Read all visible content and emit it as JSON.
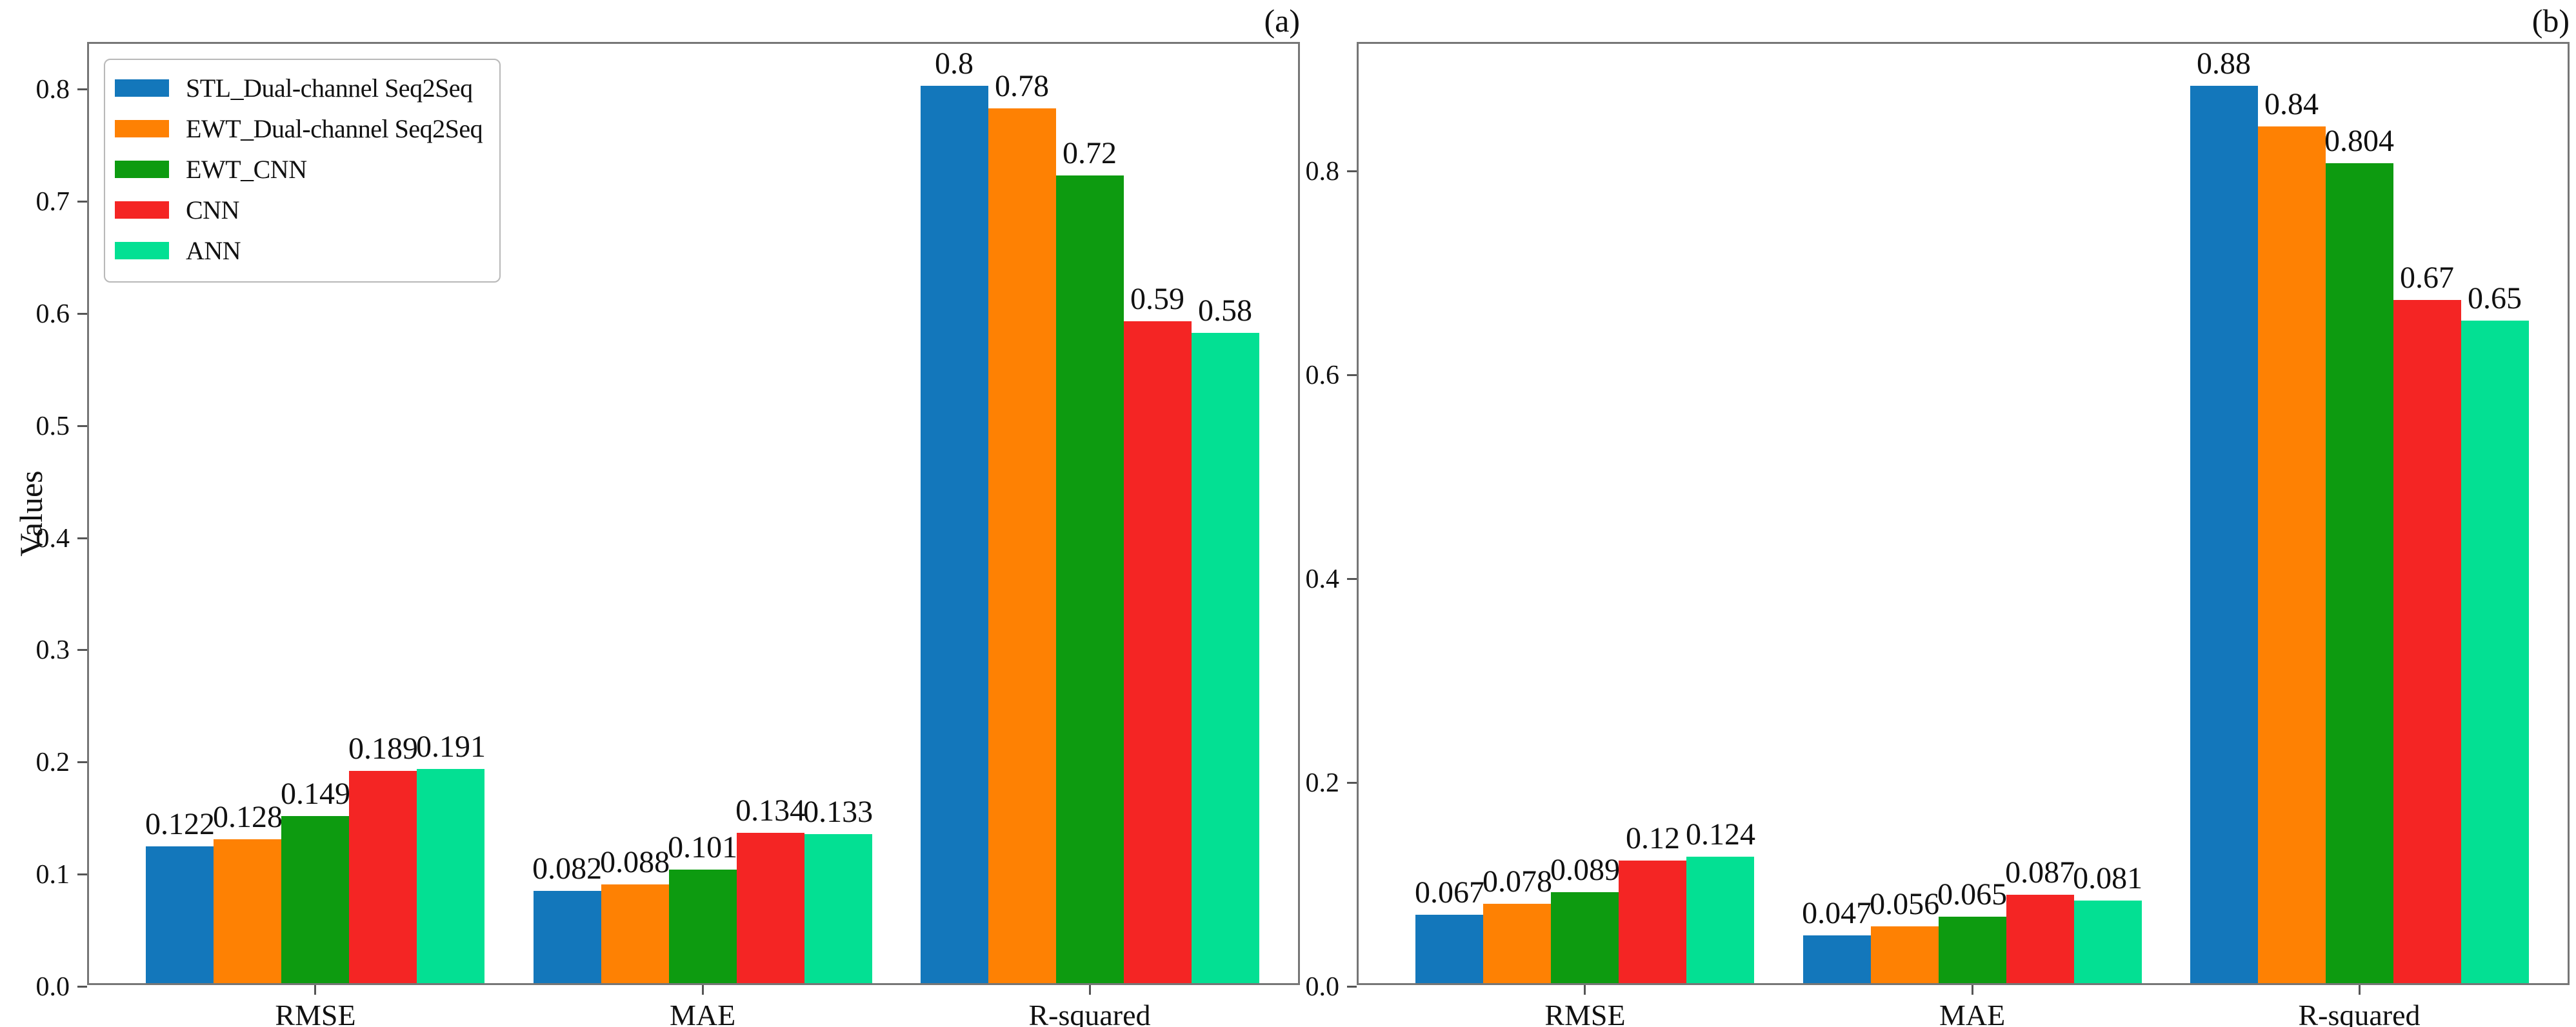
{
  "figure": {
    "ylabel": "Values",
    "panel_a_label": "(a)",
    "panel_b_label": "(b)"
  },
  "chart_data": [
    {
      "type": "bar",
      "panel_label": "(a)",
      "ylabel": "Values",
      "categories": [
        "RMSE",
        "MAE",
        "R-squared"
      ],
      "yticks": [
        "0.0",
        "0.1",
        "0.2",
        "0.3",
        "0.4",
        "0.5",
        "0.6",
        "0.7",
        "0.8"
      ],
      "ylim": [
        0,
        0.841
      ],
      "grid": false,
      "legend_position": "upper left",
      "series": [
        {
          "name": "STL_Dual-channel Seq2Seq",
          "color": "#1377bb",
          "values": [
            0.122,
            0.082,
            0.8
          ],
          "labels": [
            "0.122",
            "0.082",
            "0.8"
          ]
        },
        {
          "name": "EWT_Dual-channel Seq2Seq",
          "color": "#fe8103",
          "values": [
            0.128,
            0.088,
            0.78
          ],
          "labels": [
            "0.128",
            "0.088",
            "0.78"
          ]
        },
        {
          "name": "EWT_CNN",
          "color": "#0d9b10",
          "values": [
            0.149,
            0.101,
            0.72
          ],
          "labels": [
            "0.149",
            "0.101",
            "0.72"
          ]
        },
        {
          "name": "CNN",
          "color": "#f42524",
          "values": [
            0.189,
            0.134,
            0.59
          ],
          "labels": [
            "0.189",
            "0.134",
            "0.59"
          ]
        },
        {
          "name": "ANN",
          "color": "#03e093",
          "values": [
            0.191,
            0.133,
            0.58
          ],
          "labels": [
            "0.191",
            "0.133",
            "0.58"
          ]
        }
      ]
    },
    {
      "type": "bar",
      "panel_label": "(b)",
      "ylabel": "",
      "categories": [
        "RMSE",
        "MAE",
        "R-squared"
      ],
      "yticks": [
        "0.0",
        "0.2",
        "0.4",
        "0.6",
        "0.8"
      ],
      "ylim": [
        0,
        0.925
      ],
      "grid": false,
      "legend_position": "none",
      "series": [
        {
          "name": "STL_Dual-channel Seq2Seq",
          "color": "#1377bb",
          "values": [
            0.067,
            0.047,
            0.88
          ],
          "labels": [
            "0.067",
            "0.047",
            "0.88"
          ]
        },
        {
          "name": "EWT_Dual-channel Seq2Seq",
          "color": "#fe8103",
          "values": [
            0.078,
            0.056,
            0.84
          ],
          "labels": [
            "0.078",
            "0.056",
            "0.84"
          ]
        },
        {
          "name": "EWT_CNN",
          "color": "#0d9b10",
          "values": [
            0.089,
            0.065,
            0.804
          ],
          "labels": [
            "0.089",
            "0.065",
            "0.804"
          ]
        },
        {
          "name": "CNN",
          "color": "#f42524",
          "values": [
            0.12,
            0.087,
            0.67
          ],
          "labels": [
            "0.12",
            "0.087",
            "0.67"
          ]
        },
        {
          "name": "ANN",
          "color": "#03e093",
          "values": [
            0.124,
            0.081,
            0.65
          ],
          "labels": [
            "0.124",
            "0.081",
            "0.65"
          ]
        }
      ]
    }
  ]
}
